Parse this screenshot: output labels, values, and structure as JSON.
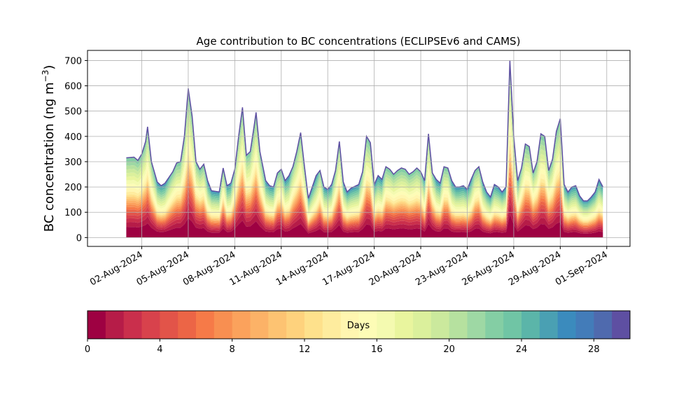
{
  "chart_data": {
    "type": "area",
    "stacked": true,
    "title": "Age contribution to BC concentrations (ECLIPSEv6 and CAMS)",
    "ylabel_main": "BC concentration (ng m",
    "ylabel_sup": "−3",
    "ylabel_close": ")",
    "ylim": [
      -35,
      740
    ],
    "yticks": [
      0,
      100,
      200,
      300,
      400,
      500,
      600,
      700
    ],
    "ytick_labels": [
      "0",
      "100",
      "200",
      "300",
      "400",
      "500",
      "600",
      "700"
    ],
    "xlim": [
      "2024-07-29T12:00",
      "2024-09-02T12:00"
    ],
    "xticks": [
      "2024-08-02",
      "2024-08-05",
      "2024-08-08",
      "2024-08-11",
      "2024-08-14",
      "2024-08-17",
      "2024-08-20",
      "2024-08-23",
      "2024-08-26",
      "2024-08-29",
      "2024-09-01"
    ],
    "xtick_labels": [
      "02-Aug-2024",
      "05-Aug-2024",
      "08-Aug-2024",
      "11-Aug-2024",
      "14-Aug-2024",
      "17-Aug-2024",
      "20-Aug-2024",
      "23-Aug-2024",
      "26-Aug-2024",
      "29-Aug-2024",
      "01-Sep-2024"
    ],
    "grid": true,
    "total": [
      [
        "2024-08-01T00:00",
        315
      ],
      [
        "2024-08-01T12:00",
        318
      ],
      [
        "2024-08-01T18:00",
        305
      ],
      [
        "2024-08-02T00:00",
        330
      ],
      [
        "2024-08-02T06:00",
        380
      ],
      [
        "2024-08-02T09:00",
        438
      ],
      [
        "2024-08-02T15:00",
        300
      ],
      [
        "2024-08-03T00:00",
        220
      ],
      [
        "2024-08-03T06:00",
        205
      ],
      [
        "2024-08-03T12:00",
        215
      ],
      [
        "2024-08-04T00:00",
        260
      ],
      [
        "2024-08-04T06:00",
        295
      ],
      [
        "2024-08-04T12:00",
        300
      ],
      [
        "2024-08-04T18:00",
        400
      ],
      [
        "2024-08-05T00:00",
        590
      ],
      [
        "2024-08-05T06:00",
        480
      ],
      [
        "2024-08-05T12:00",
        300
      ],
      [
        "2024-08-05T18:00",
        270
      ],
      [
        "2024-08-06T00:00",
        290
      ],
      [
        "2024-08-06T06:00",
        225
      ],
      [
        "2024-08-06T12:00",
        185
      ],
      [
        "2024-08-07T00:00",
        180
      ],
      [
        "2024-08-07T06:00",
        275
      ],
      [
        "2024-08-07T12:00",
        205
      ],
      [
        "2024-08-07T18:00",
        215
      ],
      [
        "2024-08-08T00:00",
        270
      ],
      [
        "2024-08-08T06:00",
        400
      ],
      [
        "2024-08-08T12:00",
        515
      ],
      [
        "2024-08-08T18:00",
        325
      ],
      [
        "2024-08-09T00:00",
        340
      ],
      [
        "2024-08-09T06:00",
        440
      ],
      [
        "2024-08-09T09:00",
        495
      ],
      [
        "2024-08-09T15:00",
        340
      ],
      [
        "2024-08-10T00:00",
        225
      ],
      [
        "2024-08-10T06:00",
        205
      ],
      [
        "2024-08-10T12:00",
        200
      ],
      [
        "2024-08-10T18:00",
        255
      ],
      [
        "2024-08-11T00:00",
        270
      ],
      [
        "2024-08-11T06:00",
        225
      ],
      [
        "2024-08-11T12:00",
        245
      ],
      [
        "2024-08-11T18:00",
        280
      ],
      [
        "2024-08-12T00:00",
        340
      ],
      [
        "2024-08-12T06:00",
        415
      ],
      [
        "2024-08-12T12:00",
        280
      ],
      [
        "2024-08-12T18:00",
        155
      ],
      [
        "2024-08-13T00:00",
        200
      ],
      [
        "2024-08-13T06:00",
        245
      ],
      [
        "2024-08-13T12:00",
        265
      ],
      [
        "2024-08-13T18:00",
        200
      ],
      [
        "2024-08-14T00:00",
        190
      ],
      [
        "2024-08-14T06:00",
        210
      ],
      [
        "2024-08-14T12:00",
        265
      ],
      [
        "2024-08-14T18:00",
        380
      ],
      [
        "2024-08-15T00:00",
        220
      ],
      [
        "2024-08-15T06:00",
        180
      ],
      [
        "2024-08-15T12:00",
        195
      ],
      [
        "2024-08-16T00:00",
        210
      ],
      [
        "2024-08-16T06:00",
        260
      ],
      [
        "2024-08-16T12:00",
        400
      ],
      [
        "2024-08-16T18:00",
        375
      ],
      [
        "2024-08-17T00:00",
        210
      ],
      [
        "2024-08-17T06:00",
        245
      ],
      [
        "2024-08-17T12:00",
        230
      ],
      [
        "2024-08-17T18:00",
        280
      ],
      [
        "2024-08-18T00:00",
        270
      ],
      [
        "2024-08-18T06:00",
        250
      ],
      [
        "2024-08-18T12:00",
        265
      ],
      [
        "2024-08-18T18:00",
        275
      ],
      [
        "2024-08-19T00:00",
        270
      ],
      [
        "2024-08-19T06:00",
        250
      ],
      [
        "2024-08-19T12:00",
        260
      ],
      [
        "2024-08-19T18:00",
        275
      ],
      [
        "2024-08-20T00:00",
        260
      ],
      [
        "2024-08-20T06:00",
        225
      ],
      [
        "2024-08-20T12:00",
        410
      ],
      [
        "2024-08-20T18:00",
        255
      ],
      [
        "2024-08-21T00:00",
        230
      ],
      [
        "2024-08-21T06:00",
        215
      ],
      [
        "2024-08-21T12:00",
        280
      ],
      [
        "2024-08-21T18:00",
        275
      ],
      [
        "2024-08-22T00:00",
        225
      ],
      [
        "2024-08-22T06:00",
        200
      ],
      [
        "2024-08-22T12:00",
        200
      ],
      [
        "2024-08-22T18:00",
        205
      ],
      [
        "2024-08-23T00:00",
        190
      ],
      [
        "2024-08-23T06:00",
        230
      ],
      [
        "2024-08-23T12:00",
        265
      ],
      [
        "2024-08-23T18:00",
        280
      ],
      [
        "2024-08-24T00:00",
        220
      ],
      [
        "2024-08-24T06:00",
        180
      ],
      [
        "2024-08-24T12:00",
        160
      ],
      [
        "2024-08-24T18:00",
        210
      ],
      [
        "2024-08-25T00:00",
        200
      ],
      [
        "2024-08-25T06:00",
        180
      ],
      [
        "2024-08-25T12:00",
        200
      ],
      [
        "2024-08-25T18:00",
        700
      ],
      [
        "2024-08-26T00:00",
        400
      ],
      [
        "2024-08-26T06:00",
        225
      ],
      [
        "2024-08-26T12:00",
        275
      ],
      [
        "2024-08-26T18:00",
        370
      ],
      [
        "2024-08-27T00:00",
        360
      ],
      [
        "2024-08-27T06:00",
        255
      ],
      [
        "2024-08-27T12:00",
        300
      ],
      [
        "2024-08-27T18:00",
        410
      ],
      [
        "2024-08-28T00:00",
        400
      ],
      [
        "2024-08-28T06:00",
        265
      ],
      [
        "2024-08-28T12:00",
        310
      ],
      [
        "2024-08-28T18:00",
        420
      ],
      [
        "2024-08-29T00:00",
        470
      ],
      [
        "2024-08-29T06:00",
        210
      ],
      [
        "2024-08-29T12:00",
        180
      ],
      [
        "2024-08-29T18:00",
        200
      ],
      [
        "2024-08-30T00:00",
        205
      ],
      [
        "2024-08-30T06:00",
        165
      ],
      [
        "2024-08-30T12:00",
        145
      ],
      [
        "2024-08-30T18:00",
        145
      ],
      [
        "2024-08-31T00:00",
        160
      ],
      [
        "2024-08-31T06:00",
        180
      ],
      [
        "2024-08-31T12:00",
        230
      ],
      [
        "2024-08-31T18:00",
        200
      ]
    ],
    "colorbar": {
      "label": "Days",
      "min": 0,
      "max": 30,
      "ticks": [
        0,
        4,
        8,
        12,
        16,
        20,
        24,
        28
      ],
      "tick_labels": [
        "0",
        "4",
        "8",
        "12",
        "16",
        "20",
        "24",
        "28"
      ],
      "colors": [
        "#9e0142",
        "#b61c48",
        "#ca2f4c",
        "#d8424c",
        "#e25449",
        "#ec6546",
        "#f67a48",
        "#f88f51",
        "#fba25c",
        "#fcb267",
        "#fdc372",
        "#fed27d",
        "#fee18c",
        "#feec9e",
        "#fff6b0",
        "#fdfcb6",
        "#f4fab0",
        "#e9f59e",
        "#dbf09c",
        "#cbe99d",
        "#b6e19f",
        "#9ed8a4",
        "#84cea4",
        "#70c5a5",
        "#5bb5a9",
        "#4aa0b3",
        "#3b8bbd",
        "#437cb9",
        "#4f6aae",
        "#5e4fa2"
      ]
    }
  }
}
